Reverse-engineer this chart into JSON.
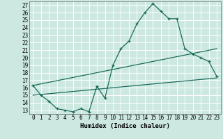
{
  "xlabel": "Humidex (Indice chaleur)",
  "bg_color": "#cce8e0",
  "grid_color": "#ffffff",
  "line_color": "#1a6b5a",
  "xlim": [
    -0.5,
    23.5
  ],
  "ylim": [
    12.5,
    27.5
  ],
  "xticks": [
    0,
    1,
    2,
    3,
    4,
    5,
    6,
    7,
    8,
    9,
    10,
    11,
    12,
    13,
    14,
    15,
    16,
    17,
    18,
    19,
    20,
    21,
    22,
    23
  ],
  "yticks": [
    13,
    14,
    15,
    16,
    17,
    18,
    19,
    20,
    21,
    22,
    23,
    24,
    25,
    26,
    27
  ],
  "main_line_x": [
    0,
    1,
    2,
    3,
    4,
    5,
    6,
    7,
    8,
    9,
    10,
    11,
    12,
    13,
    14,
    15,
    16,
    17,
    18,
    19,
    20,
    21,
    22,
    23
  ],
  "main_line_y": [
    16.3,
    15.0,
    14.2,
    13.2,
    13.0,
    12.8,
    13.2,
    12.8,
    16.2,
    14.6,
    19.0,
    21.2,
    22.2,
    24.5,
    26.0,
    27.2,
    26.2,
    25.2,
    25.2,
    21.2,
    20.5,
    20.0,
    19.5,
    17.5
  ],
  "lower_line_x": [
    0,
    23
  ],
  "lower_line_y": [
    15.0,
    17.3
  ],
  "upper_line_x": [
    0,
    23
  ],
  "upper_line_y": [
    16.3,
    21.2
  ]
}
